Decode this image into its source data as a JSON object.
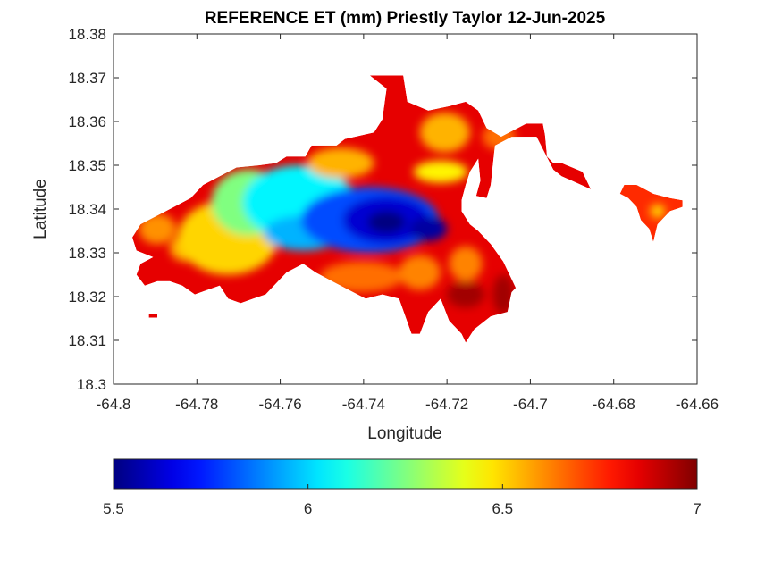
{
  "chart_data": {
    "type": "heatmap",
    "title": "REFERENCE ET (mm) Priestly Taylor 12-Jun-2025",
    "xlabel": "Longitude",
    "ylabel": "Latitude",
    "xlim": [
      -64.8,
      -64.66
    ],
    "ylim": [
      18.3,
      18.38
    ],
    "xticks": [
      -64.8,
      -64.78,
      -64.76,
      -64.74,
      -64.72,
      -64.7,
      -64.68,
      -64.66
    ],
    "xtick_labels": [
      "-64.8",
      "-64.78",
      "-64.76",
      "-64.74",
      "-64.72",
      "-64.7",
      "-64.68",
      "-64.66"
    ],
    "yticks": [
      18.3,
      18.31,
      18.32,
      18.33,
      18.34,
      18.35,
      18.36,
      18.37,
      18.38
    ],
    "ytick_labels": [
      "18.3",
      "18.31",
      "18.32",
      "18.33",
      "18.34",
      "18.35",
      "18.36",
      "18.37",
      "18.38"
    ],
    "colormap": "jet",
    "colorbar": {
      "orientation": "horizontal",
      "location": "below",
      "range": [
        5.5,
        7
      ],
      "ticks": [
        5.5,
        6,
        6.5,
        7
      ],
      "tick_labels": [
        "5.5",
        "6",
        "6.5",
        "7"
      ]
    },
    "grid": false,
    "background": "#ffffff",
    "regions": [
      {
        "name": "main",
        "outline": [
          [
            -64.7935,
            18.3365
          ],
          [
            -64.7895,
            18.3385
          ],
          [
            -64.7855,
            18.3405
          ],
          [
            -64.7815,
            18.3425
          ],
          [
            -64.7785,
            18.3455
          ],
          [
            -64.7745,
            18.3475
          ],
          [
            -64.7705,
            18.3495
          ],
          [
            -64.765,
            18.35
          ],
          [
            -64.761,
            18.3505
          ],
          [
            -64.7585,
            18.352
          ],
          [
            -64.754,
            18.352
          ],
          [
            -64.7525,
            18.3545
          ],
          [
            -64.7465,
            18.3545
          ],
          [
            -64.7445,
            18.356
          ],
          [
            -64.7375,
            18.3575
          ],
          [
            -64.7355,
            18.3605
          ],
          [
            -64.7345,
            18.3675
          ],
          [
            -64.7385,
            18.3705
          ],
          [
            -64.7305,
            18.3705
          ],
          [
            -64.7295,
            18.3645
          ],
          [
            -64.7245,
            18.3625
          ],
          [
            -64.7195,
            18.3635
          ],
          [
            -64.7155,
            18.3645
          ],
          [
            -64.7125,
            18.3625
          ],
          [
            -64.7105,
            18.3585
          ],
          [
            -64.707,
            18.3565
          ],
          [
            -64.701,
            18.3595
          ],
          [
            -64.697,
            18.3595
          ],
          [
            -64.6965,
            18.357
          ],
          [
            -64.696,
            18.352
          ],
          [
            -64.6945,
            18.3505
          ],
          [
            -64.6925,
            18.3505
          ],
          [
            -64.6875,
            18.3485
          ],
          [
            -64.6855,
            18.3445
          ],
          [
            -64.6925,
            18.3475
          ],
          [
            -64.6945,
            18.349
          ],
          [
            -64.6985,
            18.3565
          ],
          [
            -64.7045,
            18.3565
          ],
          [
            -64.7085,
            18.3545
          ],
          [
            -64.7095,
            18.3455
          ],
          [
            -64.7105,
            18.3425
          ],
          [
            -64.713,
            18.343
          ],
          [
            -64.712,
            18.3465
          ],
          [
            -64.7125,
            18.3515
          ],
          [
            -64.7145,
            18.3485
          ],
          [
            -64.7155,
            18.3455
          ],
          [
            -64.7165,
            18.342
          ],
          [
            -64.7165,
            18.3395
          ],
          [
            -64.7145,
            18.3365
          ],
          [
            -64.7125,
            18.335
          ],
          [
            -64.7095,
            18.332
          ],
          [
            -64.7065,
            18.328
          ],
          [
            -64.7035,
            18.322
          ],
          [
            -64.7045,
            18.321
          ],
          [
            -64.7055,
            18.3165
          ],
          [
            -64.7095,
            18.3155
          ],
          [
            -64.7135,
            18.3125
          ],
          [
            -64.7155,
            18.3095
          ],
          [
            -64.7165,
            18.3115
          ],
          [
            -64.7195,
            18.3145
          ],
          [
            -64.7215,
            18.3195
          ],
          [
            -64.7245,
            18.3165
          ],
          [
            -64.7265,
            18.3115
          ],
          [
            -64.7285,
            18.3115
          ],
          [
            -64.7315,
            18.3195
          ],
          [
            -64.7355,
            18.3205
          ],
          [
            -64.7395,
            18.3195
          ],
          [
            -64.7435,
            18.3215
          ],
          [
            -64.7475,
            18.3235
          ],
          [
            -64.7515,
            18.3255
          ],
          [
            -64.7545,
            18.3275
          ],
          [
            -64.7585,
            18.3255
          ],
          [
            -64.7605,
            18.3235
          ],
          [
            -64.7635,
            18.3205
          ],
          [
            -64.7665,
            18.3195
          ],
          [
            -64.7695,
            18.3185
          ],
          [
            -64.7725,
            18.3195
          ],
          [
            -64.7745,
            18.3225
          ],
          [
            -64.7775,
            18.3215
          ],
          [
            -64.7805,
            18.3205
          ],
          [
            -64.7835,
            18.3225
          ],
          [
            -64.7865,
            18.3235
          ],
          [
            -64.7895,
            18.3235
          ],
          [
            -64.7925,
            18.3225
          ],
          [
            -64.7945,
            18.325
          ],
          [
            -64.7935,
            18.3275
          ],
          [
            -64.7905,
            18.329
          ],
          [
            -64.7945,
            18.3305
          ],
          [
            -64.7955,
            18.3335
          ]
        ],
        "fill_value": 6.85
      },
      {
        "name": "east",
        "outline": [
          [
            -64.6745,
            18.3455
          ],
          [
            -64.6705,
            18.3435
          ],
          [
            -64.6665,
            18.3425
          ],
          [
            -64.6635,
            18.342
          ],
          [
            -64.6635,
            18.3405
          ],
          [
            -64.6665,
            18.3395
          ],
          [
            -64.6695,
            18.3365
          ],
          [
            -64.6705,
            18.3325
          ],
          [
            -64.6715,
            18.3355
          ],
          [
            -64.6735,
            18.3375
          ],
          [
            -64.6745,
            18.3405
          ],
          [
            -64.6765,
            18.3425
          ],
          [
            -64.6785,
            18.3435
          ],
          [
            -64.6775,
            18.3455
          ]
        ],
        "fill_value": 6.75
      },
      {
        "name": "islet",
        "outline": [
          [
            -64.7915,
            18.316
          ],
          [
            -64.7895,
            18.316
          ],
          [
            -64.7895,
            18.3152
          ],
          [
            -64.7915,
            18.3152
          ]
        ],
        "fill_value": 6.85
      }
    ],
    "features": [
      {
        "lon": -64.7895,
        "lat": 18.3355,
        "r_lon": 0.0045,
        "r_lat": 0.0035,
        "value": 6.6
      },
      {
        "lon": -64.7825,
        "lat": 18.331,
        "r_lon": 0.004,
        "r_lat": 0.003,
        "value": 6.55
      },
      {
        "lon": -64.7725,
        "lat": 18.3335,
        "r_lon": 0.012,
        "r_lat": 0.0085,
        "value": 6.5
      },
      {
        "lon": -64.7675,
        "lat": 18.3415,
        "r_lon": 0.009,
        "r_lat": 0.0075,
        "value": 6.25
      },
      {
        "lon": -64.7555,
        "lat": 18.3415,
        "r_lon": 0.0135,
        "r_lat": 0.0085,
        "value": 6.05
      },
      {
        "lon": -64.7545,
        "lat": 18.3345,
        "r_lon": 0.0095,
        "r_lat": 0.004,
        "value": 5.95
      },
      {
        "lon": -64.7385,
        "lat": 18.3375,
        "r_lon": 0.0165,
        "r_lat": 0.0075,
        "value": 5.8
      },
      {
        "lon": -64.7345,
        "lat": 18.3375,
        "r_lon": 0.0105,
        "r_lat": 0.0055,
        "value": 5.62
      },
      {
        "lon": -64.7345,
        "lat": 18.337,
        "r_lon": 0.0045,
        "r_lat": 0.0025,
        "value": 5.5
      },
      {
        "lon": -64.7245,
        "lat": 18.3355,
        "r_lon": 0.0045,
        "r_lat": 0.0028,
        "value": 5.55
      },
      {
        "lon": -64.7455,
        "lat": 18.3505,
        "r_lon": 0.008,
        "r_lat": 0.0035,
        "value": 6.55
      },
      {
        "lon": -64.7215,
        "lat": 18.3485,
        "r_lon": 0.0065,
        "r_lat": 0.0025,
        "value": 6.45
      },
      {
        "lon": -64.7205,
        "lat": 18.3575,
        "r_lon": 0.006,
        "r_lat": 0.0045,
        "value": 6.55
      },
      {
        "lon": -64.7075,
        "lat": 18.3565,
        "r_lon": 0.004,
        "r_lat": 0.003,
        "value": 6.65
      },
      {
        "lon": -64.7405,
        "lat": 18.3245,
        "r_lon": 0.01,
        "r_lat": 0.0035,
        "value": 6.65
      },
      {
        "lon": -64.7155,
        "lat": 18.3275,
        "r_lon": 0.004,
        "r_lat": 0.004,
        "value": 6.62
      },
      {
        "lon": -64.7265,
        "lat": 18.3255,
        "r_lon": 0.005,
        "r_lat": 0.004,
        "value": 6.62
      },
      {
        "lon": -64.7155,
        "lat": 18.3205,
        "r_lon": 0.0045,
        "r_lat": 0.003,
        "value": 6.95
      },
      {
        "lon": -64.7065,
        "lat": 18.3205,
        "r_lon": 0.0025,
        "r_lat": 0.0045,
        "value": 6.95
      },
      {
        "lon": -64.6695,
        "lat": 18.3395,
        "r_lon": 0.0018,
        "r_lat": 0.0016,
        "value": 6.5
      }
    ]
  }
}
